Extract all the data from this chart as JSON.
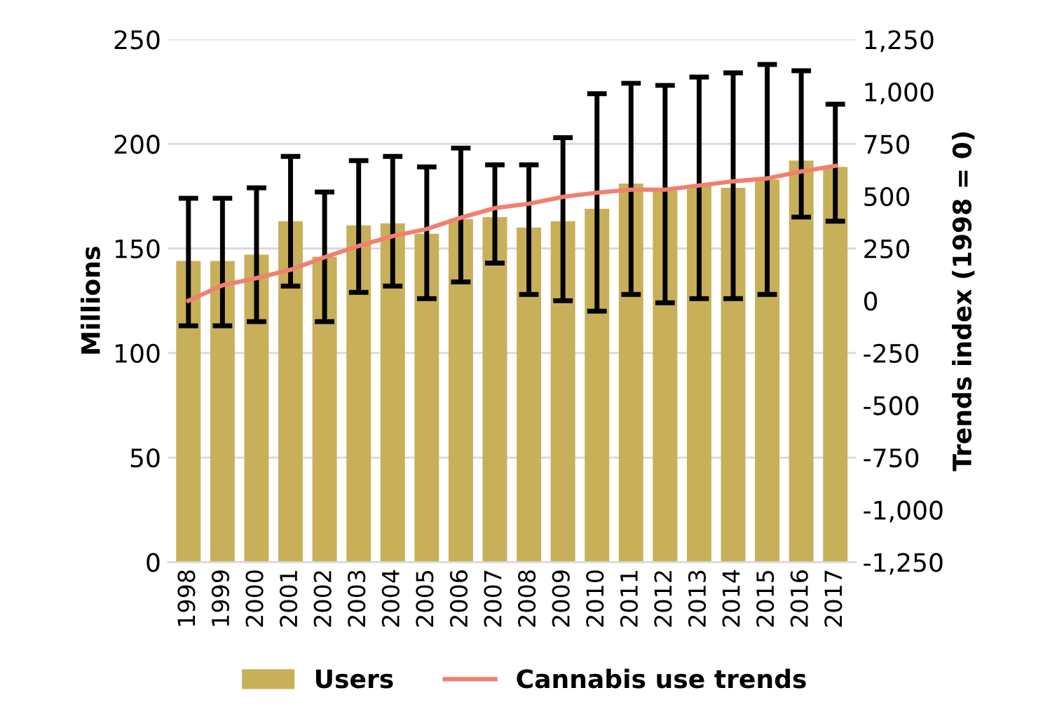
{
  "chart_data": {
    "type": "bar",
    "ylabel": "Millions",
    "y2label": "Trends index (1998 = 0)",
    "categories": [
      "1998",
      "1999",
      "2000",
      "2001",
      "2002",
      "2003",
      "2004",
      "2005",
      "2006",
      "2007",
      "2008",
      "2009",
      "2010",
      "2011",
      "2012",
      "2013",
      "2014",
      "2015",
      "2016",
      "2017"
    ],
    "series": [
      {
        "name": "Users",
        "color": "#c8b05a",
        "values": [
          144,
          144,
          147,
          163,
          146,
          161,
          162,
          157,
          164,
          165,
          160,
          163,
          169,
          181,
          178,
          180,
          179,
          183,
          192,
          189
        ],
        "errors": [
          [
            113,
            174
          ],
          [
            113,
            174
          ],
          [
            115,
            179
          ],
          [
            132,
            194
          ],
          [
            115,
            177
          ],
          [
            129,
            192
          ],
          [
            132,
            194
          ],
          [
            126,
            189
          ],
          [
            134,
            198
          ],
          [
            143,
            190
          ],
          [
            128,
            190
          ],
          [
            125,
            203
          ],
          [
            120,
            224
          ],
          [
            128,
            229
          ],
          [
            124,
            228
          ],
          [
            126,
            232
          ],
          [
            126,
            234
          ],
          [
            128,
            238
          ],
          [
            165,
            235
          ],
          [
            163,
            219
          ]
        ]
      },
      {
        "name": "Cannabis use trends",
        "type": "line",
        "axis": "y2",
        "color": "#f08070",
        "values": [
          0,
          74,
          108,
          148,
          208,
          262,
          309,
          343,
          397,
          443,
          464,
          497,
          517,
          531,
          531,
          551,
          571,
          585,
          618,
          645
        ]
      }
    ],
    "ylim": [
      0,
      250
    ],
    "yticks": [
      0,
      50,
      100,
      150,
      200,
      250
    ],
    "y2lim": [
      -1250,
      1250
    ],
    "y2ticks": [
      {
        "value": -1250,
        "label": "-1,250"
      },
      {
        "value": -1000,
        "label": "-1,000"
      },
      -750,
      -500,
      -250,
      0,
      250,
      500,
      750,
      {
        "value": 1000,
        "label": "1,000"
      },
      {
        "value": 1250,
        "label": "1,250"
      }
    ],
    "grid": "y",
    "legend": "bottom",
    "marker": "none",
    "line_style": "solid"
  }
}
